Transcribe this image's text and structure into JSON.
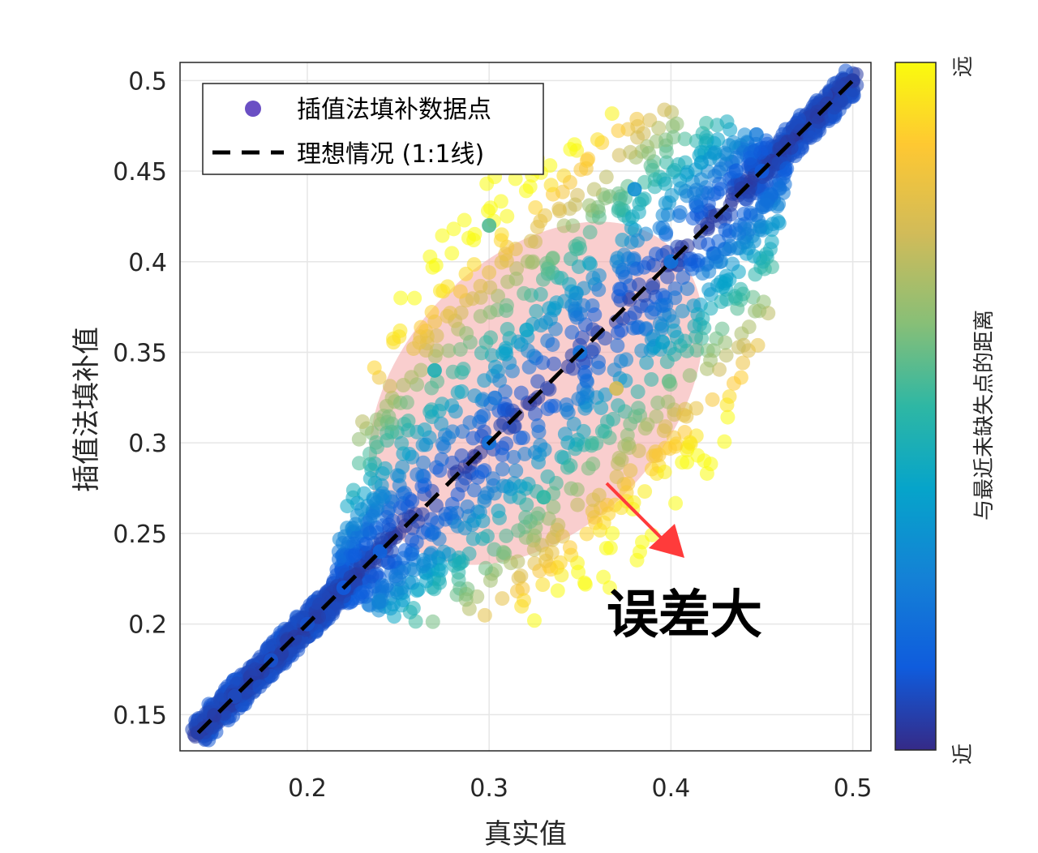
{
  "chart_data": {
    "type": "scatter",
    "xlabel": "真实值",
    "ylabel": "插值法填补值",
    "xlim": [
      0.13,
      0.51
    ],
    "ylim": [
      0.13,
      0.51
    ],
    "x_ticks": [
      0.2,
      0.3,
      0.4,
      0.5
    ],
    "y_ticks": [
      0.15,
      0.2,
      0.25,
      0.3,
      0.35,
      0.4,
      0.45,
      0.5
    ],
    "x_tick_labels": [
      "0.2",
      "0.3",
      "0.4",
      "0.5"
    ],
    "y_tick_labels": [
      "0.15",
      "0.2",
      "0.25",
      "0.3",
      "0.35",
      "0.4",
      "0.45",
      "0.5"
    ],
    "grid": true,
    "legend_position": "top-left",
    "series": [
      {
        "name": "插值法填补数据点",
        "kind": "scatter",
        "color_encoding": "与最近未缺失点的距离",
        "note_shape": "points along the 1:1 line from 0.14 to 0.5 with a large spread between 0.24 and 0.42",
        "points": [
          {
            "x": 0.14,
            "y": 0.14,
            "c": 0.05
          },
          {
            "x": 0.16,
            "y": 0.16,
            "c": 0.08
          },
          {
            "x": 0.18,
            "y": 0.18,
            "c": 0.1
          },
          {
            "x": 0.2,
            "y": 0.2,
            "c": 0.1
          },
          {
            "x": 0.22,
            "y": 0.22,
            "c": 0.12
          },
          {
            "x": 0.24,
            "y": 0.24,
            "c": 0.15
          },
          {
            "x": 0.3,
            "y": 0.3,
            "c": 0.2
          },
          {
            "x": 0.35,
            "y": 0.35,
            "c": 0.2
          },
          {
            "x": 0.4,
            "y": 0.4,
            "c": 0.2
          },
          {
            "x": 0.45,
            "y": 0.45,
            "c": 0.12
          },
          {
            "x": 0.5,
            "y": 0.5,
            "c": 0.05
          },
          {
            "x": 0.3,
            "y": 0.42,
            "c": 0.55
          },
          {
            "x": 0.27,
            "y": 0.34,
            "c": 0.45
          },
          {
            "x": 0.37,
            "y": 0.33,
            "c": 0.75
          },
          {
            "x": 0.38,
            "y": 0.44,
            "c": 0.3
          },
          {
            "x": 0.33,
            "y": 0.27,
            "c": 0.5
          }
        ]
      },
      {
        "name": "理想情况 (1:1线)",
        "kind": "line",
        "style": "dashed",
        "color": "#000000",
        "x": [
          0.14,
          0.5
        ],
        "y": [
          0.14,
          0.5
        ]
      }
    ],
    "colorbar": {
      "label": "与最近未缺失点的距离",
      "top_label": "远",
      "bottom_label": "近",
      "colormap": "parula",
      "colors": [
        "#352a87",
        "#0f5cdd",
        "#1481d6",
        "#06a4ca",
        "#2eb7a4",
        "#87bf77",
        "#d1bb59",
        "#fec832",
        "#f9fb0e"
      ]
    },
    "annotation": {
      "text": "误差大",
      "ellipse_color": "#f4a6a6",
      "arrow_color": "#ff3b3b"
    }
  }
}
